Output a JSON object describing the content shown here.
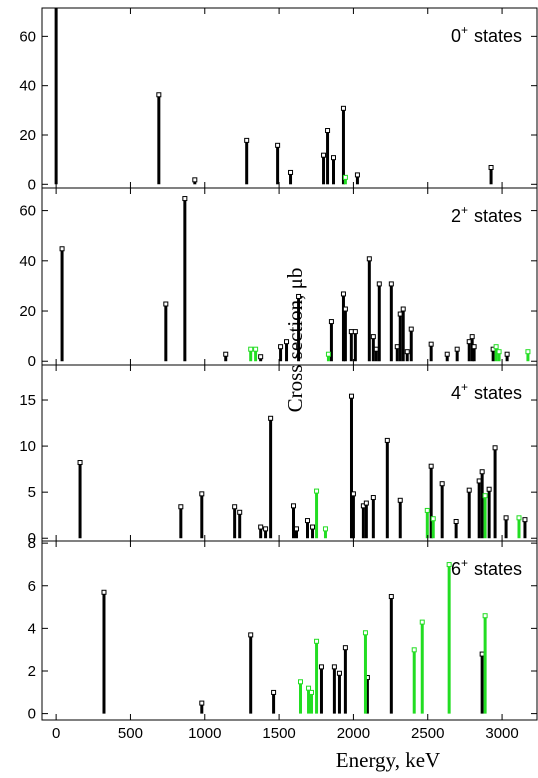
{
  "chart_data": {
    "type": "stem",
    "x_label": "Energy, keV",
    "y_label": "Cross section, μb",
    "xlim": [
      -95,
      3235
    ],
    "xticks": [
      0,
      500,
      1000,
      1500,
      2000,
      2500,
      3000
    ],
    "panels": [
      {
        "state": "0",
        "parity": "+",
        "label": "states",
        "ylim": [
          -1.5,
          71.5
        ],
        "yticks": [
          0,
          20,
          40,
          60
        ],
        "series": [
          {
            "color": "#000000",
            "x": [
              0,
              691,
              933,
              1282,
              1490,
              1577,
              1799,
              1826,
              1866,
              1933,
              2027,
              2926
            ],
            "values": [
              75,
              35.5,
              1,
              17,
              15,
              4,
              11,
              21,
              10,
              30,
              3,
              6
            ]
          },
          {
            "color": "#22dd22",
            "x": [
              1946
            ],
            "values": [
              2
            ]
          }
        ]
      },
      {
        "state": "2",
        "parity": "+",
        "label": "states",
        "ylim": [
          -1.5,
          69
        ],
        "yticks": [
          0,
          20,
          40,
          60
        ],
        "series": [
          {
            "color": "#000000",
            "x": [
              40,
              738,
              866,
              1141,
              1376,
              1510,
              1550,
              1631,
              1852,
              1933,
              1946,
              1986,
              2013,
              2107,
              2134,
              2154,
              2174,
              2255,
              2295,
              2315,
              2335,
              2362,
              2389,
              2523,
              2631,
              2698,
              2779,
              2799,
              2812,
              2940,
              3034
            ],
            "values": [
              44,
              22,
              64,
              2,
              1,
              5,
              7,
              25,
              15,
              26,
              20,
              11,
              11,
              40,
              9,
              4,
              30,
              30,
              5,
              18,
              20,
              3,
              12,
              6,
              2,
              4,
              7,
              9,
              5,
              4,
              2
            ]
          },
          {
            "color": "#22dd22",
            "x": [
              1309,
              1342,
              1832,
              2960,
              2980,
              3174
            ],
            "values": [
              4,
              4,
              2,
              5,
              3,
              3
            ]
          }
        ]
      },
      {
        "state": "4",
        "parity": "+",
        "label": "states",
        "ylim": [
          -0.3,
          18.8
        ],
        "yticks": [
          0,
          5,
          10,
          15
        ],
        "series": [
          {
            "color": "#000000",
            "x": [
              161,
              839,
              980,
              1201,
              1235,
              1376,
              1409,
              1443,
              1597,
              1617,
              1691,
              1725,
              1987,
              2000,
              2067,
              2087,
              2134,
              2228,
              2315,
              2523,
              2597,
              2691,
              2779,
              2846,
              2866,
              2913,
              2953,
              3027,
              3154
            ],
            "values": [
              8,
              3.2,
              4.6,
              3.2,
              2.6,
              1,
              0.8,
              12.8,
              3.3,
              0.8,
              1.7,
              1,
              15.2,
              4.6,
              3.3,
              3.6,
              4.2,
              10.4,
              3.9,
              7.6,
              5.7,
              1.6,
              5,
              6,
              7,
              5.1,
              9.6,
              2,
              1.8
            ]
          },
          {
            "color": "#22dd22",
            "x": [
              1752,
              1812,
              2497,
              2537,
              2886,
              3114
            ],
            "values": [
              4.9,
              0.8,
              2.8,
              1.9,
              4.4,
              2
            ]
          }
        ]
      },
      {
        "state": "6",
        "parity": "+",
        "label": "states",
        "ylim": [
          -0.3,
          8.1
        ],
        "yticks": [
          0,
          2,
          4,
          6,
          8
        ],
        "series": [
          {
            "color": "#000000",
            "x": [
              322,
              980,
              1309,
              1463,
              1785,
              1872,
              1906,
              1946,
              2094,
              2255,
              2866
            ],
            "values": [
              5.6,
              0.4,
              3.6,
              0.9,
              2.1,
              2.1,
              1.8,
              3,
              1.6,
              5.4,
              2.7
            ]
          },
          {
            "color": "#22dd22",
            "x": [
              1644,
              1698,
              1718,
              1752,
              2081,
              2409,
              2463,
              2644,
              2886
            ],
            "values": [
              1.4,
              1.1,
              0.9,
              3.3,
              3.7,
              2.9,
              4.2,
              6.9,
              4.5
            ]
          }
        ]
      }
    ]
  }
}
